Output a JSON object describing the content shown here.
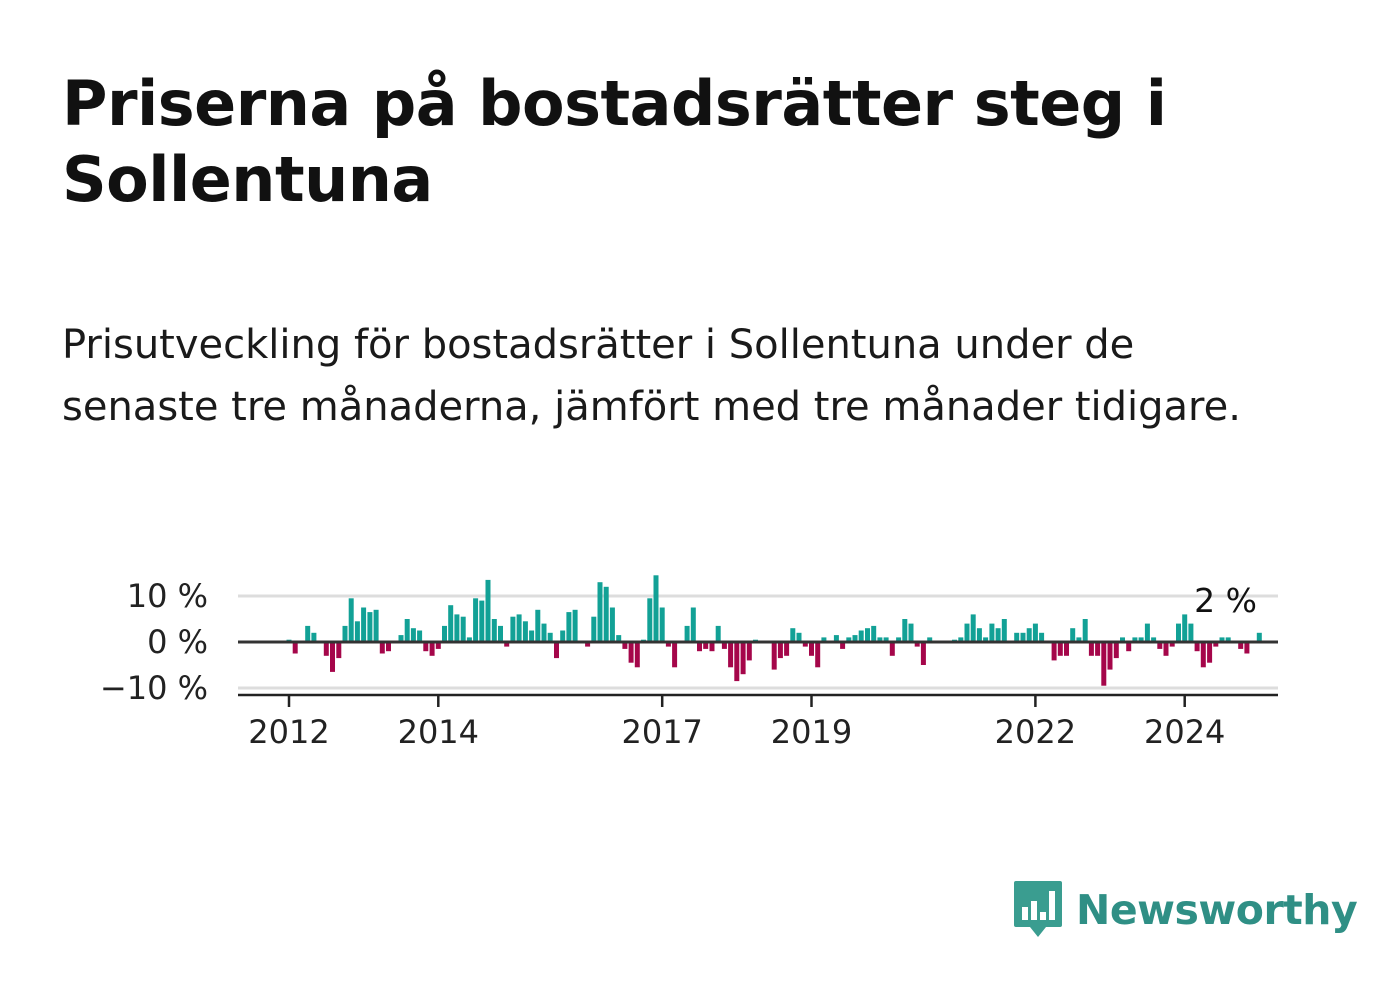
{
  "title": "Priserna på bostadsrätter steg i Sollentuna",
  "subtitle": "Prisutveckling för bostadsrätter i Sollentuna under de senaste tre månaderna, jämfört med tre månader tidigare.",
  "brand": {
    "name": "Newsworthy",
    "color": "#3a9d90",
    "logo_icon": "bar-chart-speech-bubble-icon"
  },
  "colors": {
    "positive": "#12a196",
    "negative": "#a5064a",
    "zero_line": "#333333",
    "grid": "#dddddd"
  },
  "chart_data": {
    "type": "bar",
    "title": "",
    "xlabel": "",
    "ylabel": "",
    "ylim": [
      -12,
      12
    ],
    "start": "2012-01",
    "yticks": [
      10,
      0,
      -10
    ],
    "ytick_labels": [
      "10 %",
      "0 %",
      "−10 %"
    ],
    "xtick_labels": [
      "2012",
      "2014",
      "2017",
      "2019",
      "2022",
      "2024"
    ],
    "end_label": "2 %",
    "values": [
      0.5,
      -2.5,
      0,
      3.5,
      2,
      0,
      -3,
      -6.5,
      -3.5,
      3.5,
      9.5,
      4.5,
      7.5,
      6.5,
      7,
      -2.5,
      -2,
      0,
      1.5,
      5,
      3,
      2.5,
      -2,
      -3,
      -1.5,
      3.5,
      8,
      6,
      5.5,
      1,
      9.5,
      9,
      13.5,
      5,
      3.5,
      -1,
      5.5,
      6,
      4.5,
      2.5,
      7,
      4,
      2,
      -3.5,
      2.5,
      6.5,
      7,
      0,
      -1,
      5.5,
      13,
      12,
      7.5,
      1.5,
      -1.5,
      -4.5,
      -5.5,
      0.5,
      9.5,
      14.5,
      7.5,
      -1,
      -5.5,
      0,
      3.5,
      7.5,
      -2,
      -1.5,
      -2,
      3.5,
      -1.5,
      -5.5,
      -8.5,
      -7,
      -4,
      0.5,
      0,
      0,
      -6,
      -3.5,
      -3,
      3,
      2,
      -1,
      -3,
      -5.5,
      1,
      0,
      1.5,
      -1.5,
      1,
      1.5,
      2.5,
      3,
      3.5,
      1,
      1,
      -3,
      1,
      5,
      4,
      -1,
      -5,
      1,
      0,
      0,
      0,
      0.5,
      1,
      4,
      6,
      3,
      1,
      4,
      3,
      5,
      0,
      2,
      2,
      3,
      4,
      2,
      0,
      -4,
      -3,
      -3,
      3,
      1,
      5,
      -3,
      -3,
      -9.5,
      -6,
      -3.5,
      1,
      -2,
      1,
      1,
      4,
      1,
      -1.5,
      -3,
      -1,
      4,
      6,
      4,
      -2,
      -5.5,
      -4.5,
      -1,
      1,
      1,
      0,
      -1.5,
      -2.5,
      0,
      2
    ]
  }
}
